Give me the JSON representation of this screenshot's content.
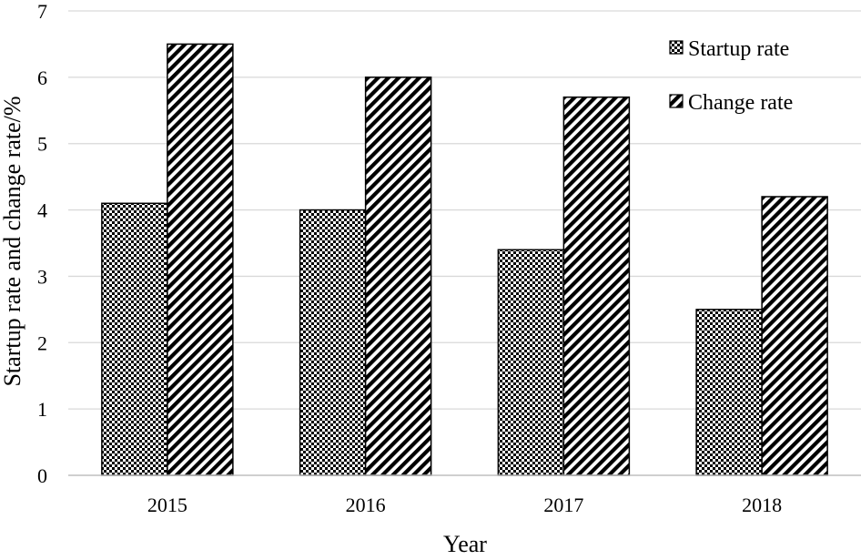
{
  "chart_data": {
    "type": "bar",
    "title": "",
    "xlabel": "Year",
    "ylabel": "Startup rate and change rate/%",
    "categories": [
      "2015",
      "2016",
      "2017",
      "2018"
    ],
    "series": [
      {
        "name": "Startup rate",
        "values": [
          4.1,
          4.0,
          3.4,
          2.5
        ],
        "pattern": "checker"
      },
      {
        "name": "Change rate",
        "values": [
          6.5,
          6.0,
          5.7,
          4.2
        ],
        "pattern": "diagonal-stripes"
      }
    ],
    "ylim": [
      0,
      7
    ],
    "yticks": [
      0,
      1,
      2,
      3,
      4,
      5,
      6,
      7
    ],
    "grid": true,
    "legend_position": "top-right",
    "colors": {
      "bar_stroke": "#000000",
      "pattern_ink": "#000000",
      "pattern_paper": "#ffffff",
      "gridline": "#d9d9d9",
      "axis_line": "#bfbfbf"
    }
  }
}
